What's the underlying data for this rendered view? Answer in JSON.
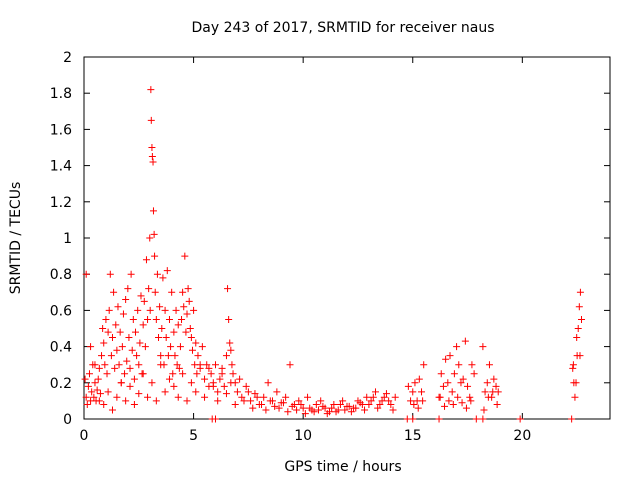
{
  "chart_data": {
    "type": "scatter",
    "title": "Day 243 of 2017, SRMTID for receiver naus",
    "xlabel": "GPS time / hours",
    "ylabel": "SRMTID / TECUs",
    "xlim": [
      0,
      24
    ],
    "ylim": [
      0,
      2
    ],
    "grid": false,
    "legend": "none",
    "marker": "plus",
    "color": "#ff0000",
    "x_ticks": [
      "0",
      "5",
      "10",
      "15",
      "20"
    ],
    "y_ticks": [
      "0",
      "0.2",
      "0.4",
      "0.6",
      "0.8",
      "1",
      "1.2",
      "1.4",
      "1.6",
      "1.8",
      "2"
    ],
    "series": [
      {
        "x": [
          0.05,
          0.1,
          0.15,
          0.2,
          0.25,
          0.3,
          0.35,
          0.4,
          0.45,
          0.5,
          0.55,
          0.6,
          0.65,
          0.7,
          0.75,
          0.8,
          0.85,
          0.9,
          0.95,
          1.0,
          1.05,
          1.1,
          1.15,
          1.2,
          1.25,
          1.3,
          1.35,
          1.4,
          1.45,
          1.5,
          1.55,
          1.6,
          1.65,
          1.7,
          1.75,
          1.8,
          1.85,
          1.9,
          1.95,
          2.0,
          2.05,
          2.1,
          2.15,
          2.2,
          2.25,
          2.3,
          2.35,
          2.4,
          2.45,
          2.5,
          2.55,
          2.6,
          2.65,
          2.7,
          2.75,
          2.8,
          2.85,
          2.9,
          2.95,
          3.0,
          3.02,
          3.05,
          3.07,
          3.1,
          3.12,
          3.15,
          3.17,
          3.2,
          3.22,
          3.25,
          3.3,
          3.35,
          3.4,
          3.45,
          3.5,
          3.55,
          3.6,
          3.65,
          3.7,
          3.75,
          3.8,
          3.85,
          3.9,
          3.95,
          4.0,
          4.05,
          4.1,
          4.15,
          4.2,
          4.25,
          4.3,
          4.35,
          4.4,
          4.45,
          4.5,
          4.55,
          4.6,
          4.65,
          4.7,
          4.75,
          4.8,
          4.85,
          4.9,
          4.95,
          5.0,
          5.05,
          5.1,
          5.15,
          5.2,
          5.3,
          5.4,
          5.5,
          5.6,
          5.7,
          5.8,
          5.9,
          6.0,
          6.1,
          6.2,
          6.3,
          6.4,
          6.5,
          6.55,
          6.6,
          6.65,
          6.7,
          6.75,
          6.8,
          6.9,
          7.0,
          7.2,
          7.4,
          7.6,
          7.8,
          8.0,
          8.2,
          8.4,
          8.6,
          8.8,
          9.0,
          9.2,
          9.4,
          9.6,
          9.8,
          10.0,
          10.2,
          10.4,
          10.6,
          10.8,
          11.0,
          11.2,
          11.4,
          11.6,
          11.8,
          12.0,
          12.2,
          12.4,
          12.6,
          12.8,
          13.0,
          13.2,
          13.4,
          13.6,
          13.8,
          14.0,
          14.2,
          14.8,
          14.9,
          15.0,
          15.1,
          15.2,
          15.3,
          15.4,
          15.5,
          16.2,
          16.3,
          16.4,
          16.5,
          16.6,
          16.7,
          16.8,
          16.9,
          17.0,
          17.1,
          17.2,
          17.3,
          17.4,
          17.5,
          17.6,
          17.7,
          17.8,
          18.2,
          18.3,
          18.4,
          18.5,
          18.6,
          18.7,
          18.8,
          18.9,
          22.3,
          22.35,
          22.4,
          22.45,
          22.5,
          22.55,
          22.6,
          22.65,
          22.7,
          0.1,
          0.3,
          0.5,
          0.7,
          0.9,
          1.1,
          1.3,
          1.5,
          1.7,
          1.9,
          2.1,
          2.3,
          2.5,
          2.7,
          2.9,
          3.1,
          3.3,
          3.5,
          3.7,
          3.9,
          4.1,
          4.3,
          4.5,
          4.7,
          4.9,
          5.1,
          5.3,
          5.5,
          5.7,
          5.9,
          6.1,
          6.3,
          6.5,
          6.7,
          6.9,
          7.1,
          7.3,
          7.5,
          7.7,
          7.9,
          8.1,
          8.3,
          8.5,
          8.7,
          8.9,
          9.1,
          9.3,
          9.5,
          9.7,
          9.9,
          10.1,
          10.3,
          10.5,
          10.7,
          10.9,
          11.1,
          11.3,
          11.5,
          11.7,
          11.9,
          12.1,
          12.3,
          12.5,
          12.7,
          12.9,
          13.1,
          13.3,
          13.5,
          13.7,
          13.9,
          14.1,
          15.05,
          15.25,
          15.45,
          16.25,
          16.45,
          16.65,
          16.85,
          17.05,
          17.25,
          17.45,
          17.65,
          18.25,
          18.45,
          18.65,
          18.85,
          22.33,
          22.48,
          22.63,
          5.85,
          6.0,
          14.75,
          15.0,
          16.2,
          17.9,
          18.2,
          19.9,
          22.25
        ],
        "y": [
          0.22,
          0.12,
          0.08,
          0.18,
          0.25,
          0.1,
          0.15,
          0.3,
          0.12,
          0.2,
          0.1,
          0.16,
          0.22,
          0.28,
          0.14,
          0.35,
          0.5,
          0.42,
          0.3,
          0.55,
          0.25,
          0.48,
          0.6,
          0.8,
          0.35,
          0.45,
          0.7,
          0.28,
          0.52,
          0.38,
          0.62,
          0.3,
          0.48,
          0.2,
          0.4,
          0.58,
          0.25,
          0.66,
          0.32,
          0.72,
          0.45,
          0.28,
          0.8,
          0.38,
          0.55,
          0.22,
          0.48,
          0.35,
          0.6,
          0.3,
          0.42,
          0.68,
          0.25,
          0.52,
          0.65,
          0.4,
          0.88,
          0.55,
          0.72,
          1.0,
          0.6,
          1.82,
          1.65,
          1.5,
          1.45,
          1.42,
          1.15,
          1.02,
          0.9,
          0.7,
          0.55,
          0.8,
          0.45,
          0.62,
          0.35,
          0.5,
          0.78,
          0.3,
          0.6,
          0.45,
          0.82,
          0.35,
          0.55,
          0.4,
          0.7,
          0.25,
          0.48,
          0.35,
          0.6,
          0.3,
          0.52,
          0.28,
          0.4,
          0.55,
          0.7,
          0.62,
          0.9,
          0.48,
          0.58,
          0.72,
          0.65,
          0.5,
          0.45,
          0.38,
          0.6,
          0.3,
          0.42,
          0.25,
          0.35,
          0.28,
          0.4,
          0.22,
          0.3,
          0.18,
          0.25,
          0.2,
          0.3,
          0.15,
          0.22,
          0.28,
          0.18,
          0.35,
          0.72,
          0.55,
          0.42,
          0.38,
          0.3,
          0.25,
          0.2,
          0.15,
          0.12,
          0.18,
          0.1,
          0.14,
          0.08,
          0.12,
          0.2,
          0.1,
          0.15,
          0.09,
          0.12,
          0.3,
          0.08,
          0.1,
          0.06,
          0.12,
          0.05,
          0.08,
          0.1,
          0.06,
          0.04,
          0.08,
          0.05,
          0.1,
          0.07,
          0.04,
          0.06,
          0.09,
          0.05,
          0.08,
          0.12,
          0.06,
          0.1,
          0.14,
          0.08,
          0.12,
          0.18,
          0.1,
          0.15,
          0.2,
          0.1,
          0.22,
          0.15,
          0.3,
          0.12,
          0.25,
          0.18,
          0.33,
          0.2,
          0.35,
          0.15,
          0.25,
          0.4,
          0.3,
          0.2,
          0.22,
          0.43,
          0.18,
          0.12,
          0.3,
          0.25,
          0.4,
          0.15,
          0.2,
          0.3,
          0.12,
          0.22,
          0.18,
          0.15,
          0.28,
          0.2,
          0.12,
          0.2,
          0.35,
          0.5,
          0.62,
          0.7,
          0.55,
          0.8,
          0.4,
          0.3,
          0.1,
          0.08,
          0.15,
          0.05,
          0.12,
          0.2,
          0.1,
          0.18,
          0.08,
          0.14,
          0.25,
          0.12,
          0.2,
          0.1,
          0.3,
          0.15,
          0.22,
          0.18,
          0.12,
          0.25,
          0.1,
          0.2,
          0.15,
          0.3,
          0.12,
          0.28,
          0.18,
          0.1,
          0.25,
          0.14,
          0.2,
          0.08,
          0.22,
          0.1,
          0.15,
          0.06,
          0.12,
          0.08,
          0.05,
          0.1,
          0.07,
          0.06,
          0.09,
          0.04,
          0.07,
          0.05,
          0.08,
          0.03,
          0.06,
          0.04,
          0.05,
          0.07,
          0.03,
          0.06,
          0.04,
          0.08,
          0.05,
          0.07,
          0.06,
          0.1,
          0.08,
          0.12,
          0.1,
          0.15,
          0.08,
          0.12,
          0.1,
          0.05,
          0.08,
          0.06,
          0.1,
          0.12,
          0.07,
          0.1,
          0.08,
          0.12,
          0.09,
          0.06,
          0.1,
          0.05,
          0.12,
          0.15,
          0.08,
          0.3,
          0.45,
          0.35,
          0.0,
          0.0,
          0.0,
          0.0,
          0.0,
          0.0,
          0.0,
          0.0,
          0.0
        ]
      }
    ]
  }
}
